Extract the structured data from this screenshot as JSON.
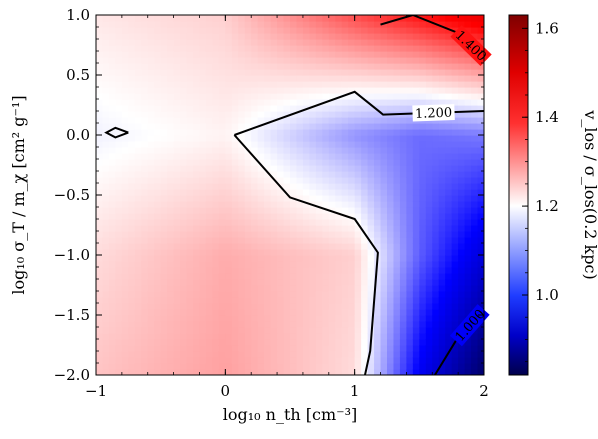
{
  "chart_data": {
    "type": "heatmap",
    "title": "",
    "xlabel": "log₁₀ n_th [cm⁻³]",
    "ylabel": "log₁₀ σ_T / m_χ [cm² g⁻¹]",
    "colorbar_label": "v_los / σ_los(0.2 kpc)",
    "xlim": [
      -1,
      2
    ],
    "ylim": [
      -2,
      1
    ],
    "x_ticks": [
      "−1",
      "0",
      "1",
      "2"
    ],
    "y_ticks": [
      "−2.0",
      "−1.5",
      "−1.0",
      "−0.5",
      "0.0",
      "0.5",
      "1.0"
    ],
    "colorbar": {
      "vmin": 0.82,
      "vmax": 1.63,
      "center": 1.2,
      "ticks": [
        "1.0",
        "1.2",
        "1.4",
        "1.6"
      ],
      "cmap": "seismic",
      "colors": [
        "#00004c",
        "#0000ff",
        "#ffffff",
        "#ff0000",
        "#7f0000"
      ]
    },
    "grid": [
      {
        "x": -1.0,
        "y": -2.0,
        "v": 1.25
      },
      {
        "x": 0.0,
        "y": -2.0,
        "v": 1.28
      },
      {
        "x": 1.0,
        "y": -2.0,
        "v": 1.23
      },
      {
        "x": 1.5,
        "y": -2.0,
        "v": 1.0
      },
      {
        "x": 2.0,
        "y": -2.0,
        "v": 0.85
      },
      {
        "x": -1.0,
        "y": -1.0,
        "v": 1.23
      },
      {
        "x": 0.0,
        "y": -1.0,
        "v": 1.27
      },
      {
        "x": 1.0,
        "y": -1.0,
        "v": 1.24
      },
      {
        "x": 1.5,
        "y": -1.0,
        "v": 1.08
      },
      {
        "x": 2.0,
        "y": -1.0,
        "v": 0.97
      },
      {
        "x": -1.0,
        "y": 0.0,
        "v": 1.19
      },
      {
        "x": 0.0,
        "y": 0.0,
        "v": 1.21
      },
      {
        "x": 1.0,
        "y": 0.0,
        "v": 1.12
      },
      {
        "x": 1.5,
        "y": 0.0,
        "v": 1.09
      },
      {
        "x": 2.0,
        "y": 0.0,
        "v": 1.1
      },
      {
        "x": -1.0,
        "y": 1.0,
        "v": 1.22
      },
      {
        "x": 0.0,
        "y": 1.0,
        "v": 1.24
      },
      {
        "x": 1.0,
        "y": 1.0,
        "v": 1.35
      },
      {
        "x": 1.5,
        "y": 1.0,
        "v": 1.4
      },
      {
        "x": 2.0,
        "y": 1.0,
        "v": 1.45
      }
    ],
    "contours": [
      {
        "level": 1.2,
        "label": "1.200",
        "path": [
          [
            0.07,
            0.0
          ],
          [
            1.0,
            0.36
          ],
          [
            1.22,
            0.17
          ],
          [
            2.0,
            0.2
          ]
        ]
      },
      {
        "level": 1.2,
        "label": "",
        "path": [
          [
            0.07,
            0.0
          ],
          [
            0.5,
            -0.52
          ],
          [
            1.0,
            -0.7
          ],
          [
            1.18,
            -0.98
          ],
          [
            1.12,
            -1.8
          ],
          [
            1.08,
            -2.0
          ]
        ]
      },
      {
        "level": 1.2,
        "label": "",
        "path": [
          [
            -0.75,
            0.02
          ],
          [
            -0.85,
            -0.02
          ],
          [
            -0.92,
            0.02
          ],
          [
            -0.85,
            0.06
          ],
          [
            -0.75,
            0.02
          ]
        ]
      },
      {
        "level": 1.4,
        "label": "1.400",
        "path": [
          [
            1.2,
            0.92
          ],
          [
            1.45,
            1.0
          ],
          [
            1.8,
            0.85
          ],
          [
            2.0,
            0.64
          ]
        ]
      },
      {
        "level": 1.0,
        "label": "1.000",
        "path": [
          [
            1.62,
            -2.0
          ],
          [
            1.78,
            -1.72
          ],
          [
            2.0,
            -1.45
          ]
        ]
      }
    ]
  }
}
